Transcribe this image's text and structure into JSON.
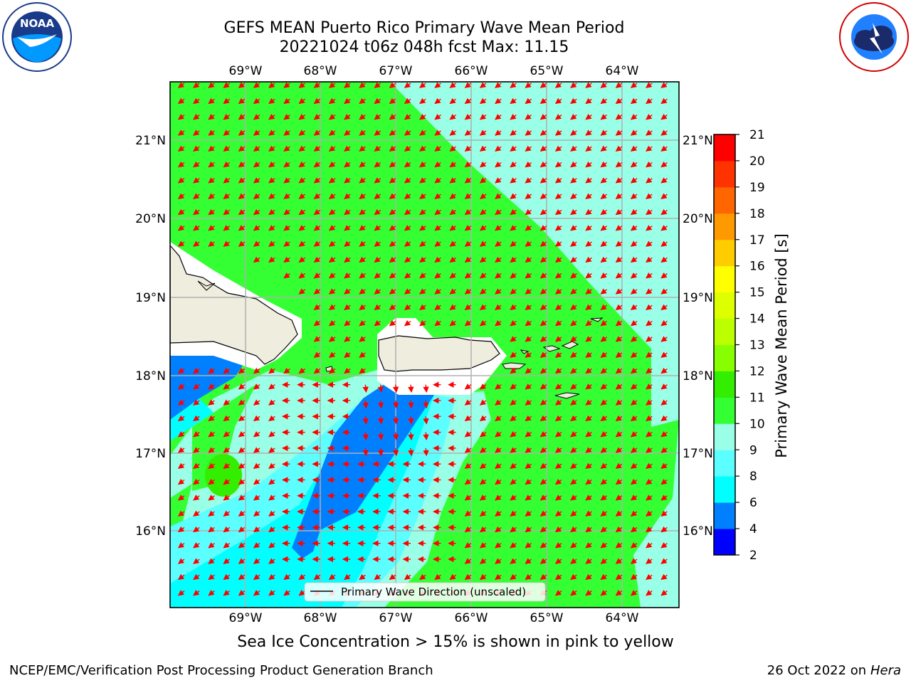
{
  "title": {
    "line1": "GEFS MEAN Puerto Rico Primary Wave Mean Period",
    "line2": "20221024 t06z 048h fcst   Max: 11.15"
  },
  "subnote": "Sea Ice Concentration > 15% is shown in pink to yellow",
  "footer": {
    "left": "NCEP/EMC/Verification Post Processing Product Generation Branch",
    "right_date": "26 Oct 2022 on ",
    "right_host": "Hera"
  },
  "logos": {
    "left": "noaa-logo",
    "right": "nws-logo"
  },
  "map": {
    "lon_ticks": [
      "69°W",
      "68°W",
      "67°W",
      "66°W",
      "65°W",
      "64°W"
    ],
    "lat_ticks": [
      "21°N",
      "20°N",
      "19°N",
      "18°N",
      "17°N",
      "16°N"
    ],
    "legend_label": "Primary Wave Direction (unscaled)",
    "arrow_color": "#ff0000"
  },
  "colorbar": {
    "label": "Primary Wave Mean Period [s]",
    "ticks": [
      "2",
      "4",
      "6",
      "8",
      "9",
      "10",
      "11",
      "12",
      "13",
      "14",
      "15",
      "16",
      "17",
      "18",
      "19",
      "20",
      "21"
    ],
    "colors": [
      "#0000ff",
      "#0080ff",
      "#00ffff",
      "#5cffff",
      "#99ffe6",
      "#33ff33",
      "#33ee00",
      "#88ff00",
      "#bbff00",
      "#ddff00",
      "#ffff00",
      "#ffcc00",
      "#ff9900",
      "#ff6600",
      "#ff3300",
      "#ff0000"
    ]
  }
}
